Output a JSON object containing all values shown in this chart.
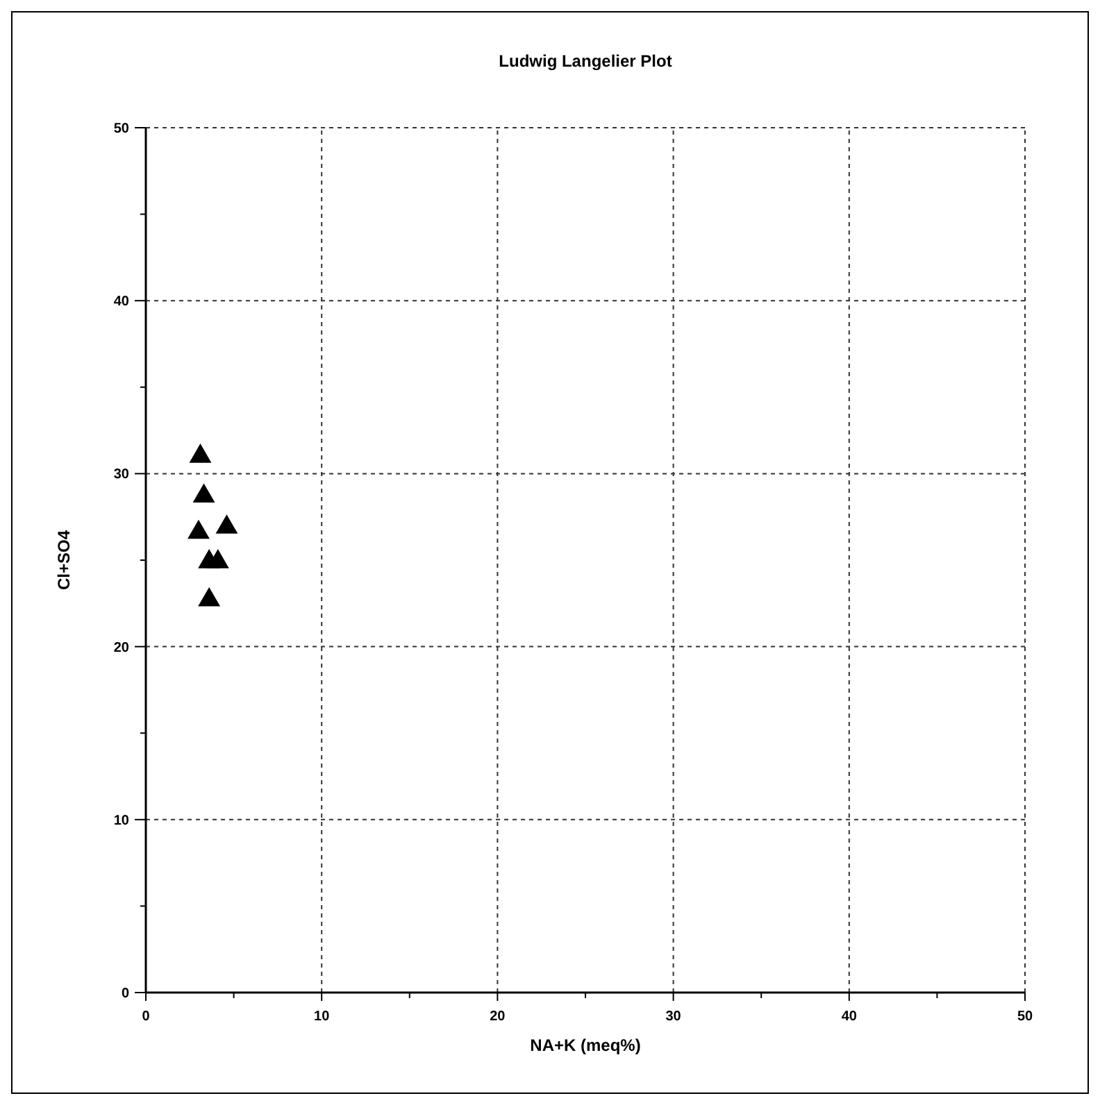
{
  "chart_data": {
    "type": "scatter",
    "title": "Ludwig Langelier Plot",
    "xlabel": "NA+K (meq%)",
    "ylabel": "Cl+SO4",
    "x": [
      3.1,
      3.3,
      3.0,
      4.6,
      3.6,
      4.1,
      3.6
    ],
    "series": [
      {
        "color": "#000000",
        "values": [
          31.0,
          28.7,
          26.6,
          26.9,
          24.9,
          24.9,
          22.7
        ]
      }
    ],
    "xlim": [
      0,
      50
    ],
    "ylim": [
      0,
      50
    ],
    "xticks": [
      0,
      10,
      20,
      30,
      40,
      50
    ],
    "yticks": [
      0,
      10,
      20,
      30,
      40,
      50
    ],
    "grid": true,
    "marker": "triangle"
  }
}
